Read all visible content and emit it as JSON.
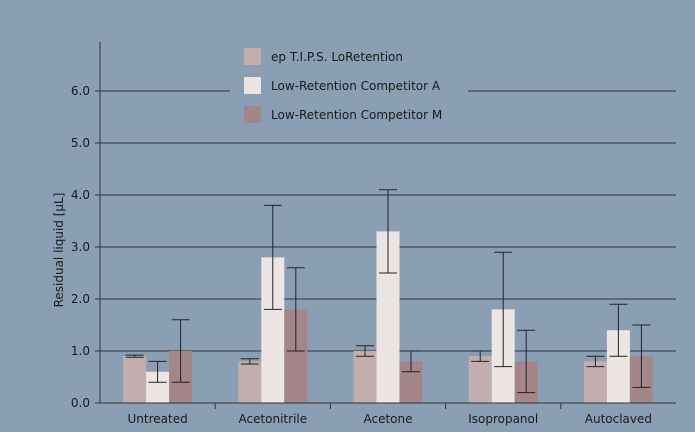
{
  "colors": {
    "background": "#8a9fb4",
    "axis": "#333333",
    "series_1": "#c2aeae",
    "series_2": "#ede5e3",
    "series_3": "#a3858a"
  },
  "chart_data": {
    "type": "bar",
    "title": "",
    "xlabel": "",
    "ylabel": "Residual liquid [µL]",
    "ylim": [
      0,
      7
    ],
    "yticks": [
      0,
      1,
      2,
      3,
      4,
      5,
      6
    ],
    "ytick_labels": [
      "0.0",
      "1.0",
      "2.0",
      "3.0",
      "4.0",
      "5.0",
      "6.0"
    ],
    "grid": "horizontal",
    "legend_position": "top-center",
    "categories": [
      "Untreated",
      "Acetonitrile",
      "Acetone",
      "Isopropanol",
      "Autoclaved"
    ],
    "series": [
      {
        "name": "ep T.I.P.S. LoRetention",
        "values": [
          0.9,
          0.8,
          1.0,
          0.9,
          0.8
        ],
        "error_low": [
          0.88,
          0.75,
          0.9,
          0.8,
          0.7
        ],
        "error_high": [
          0.92,
          0.85,
          1.1,
          1.0,
          0.9
        ]
      },
      {
        "name": "Low-Retention Competitor A",
        "values": [
          0.6,
          2.8,
          3.3,
          1.8,
          1.4
        ],
        "error_low": [
          0.4,
          1.8,
          2.5,
          0.7,
          0.9
        ],
        "error_high": [
          0.8,
          3.8,
          4.1,
          2.9,
          1.9
        ]
      },
      {
        "name": "Low-Retention Competitor M",
        "values": [
          1.0,
          1.8,
          0.8,
          0.8,
          0.9
        ],
        "error_low": [
          0.4,
          1.0,
          0.6,
          0.2,
          0.3
        ],
        "error_high": [
          1.6,
          2.6,
          1.0,
          1.4,
          1.5
        ]
      }
    ]
  }
}
